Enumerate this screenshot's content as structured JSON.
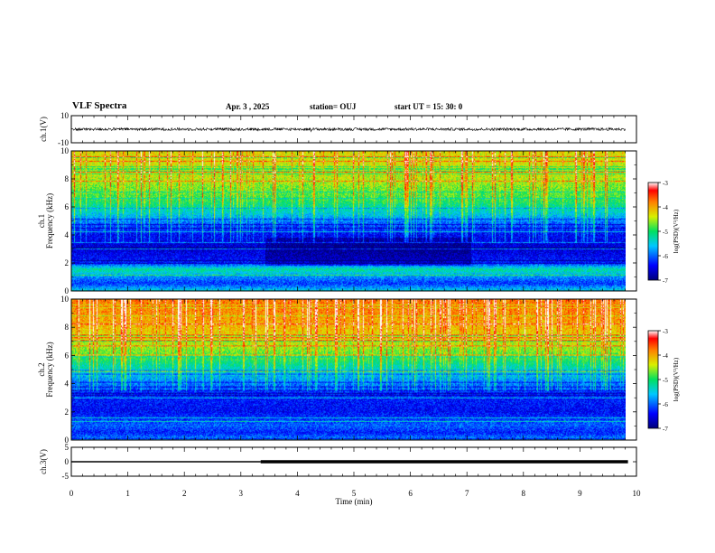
{
  "header": {
    "title": "VLF Spectra",
    "date": "Apr. 3 , 2025",
    "station": "station= OUJ",
    "start_ut": "start  UT =   15: 30: 0"
  },
  "chart_data": [
    {
      "type": "line",
      "panel": "ch1-waveform",
      "ylabel": "ch.1(V)",
      "ylim": [
        -10,
        10
      ],
      "yticks": [
        "10",
        "-10"
      ],
      "xlim": [
        0,
        10
      ],
      "series": [
        {
          "baseline": 0,
          "noise_amplitude": 1.0,
          "xmax": 9.85
        }
      ]
    },
    {
      "type": "heatmap",
      "panel": "ch1-spectrogram",
      "ylabel": "ch.1 Frequency (kHz)",
      "ylim": [
        0,
        10
      ],
      "yticks": [
        "0",
        "2",
        "4",
        "6",
        "8",
        "10"
      ],
      "xlim": [
        0,
        9.85
      ],
      "colorbar": {
        "label": "log(PSD)(V²/Hz)",
        "range": [
          -7,
          -3
        ],
        "ticks": [
          "-3",
          "-4",
          "-5",
          "-6",
          "-7"
        ]
      },
      "intensity_profile": {
        "freq_khz": [
          0,
          0.5,
          1,
          1.5,
          2,
          3,
          4,
          4.8,
          5.5,
          6.5,
          8,
          10
        ],
        "log_psd": [
          -5.5,
          -6.2,
          -5.8,
          -5.2,
          -6.3,
          -6.6,
          -6.5,
          -6.1,
          -5.6,
          -5.0,
          -4.6,
          -4.4
        ]
      }
    },
    {
      "type": "heatmap",
      "panel": "ch2-spectrogram",
      "ylabel": "ch.2 Frequency (kHz)",
      "ylim": [
        0,
        10
      ],
      "yticks": [
        "0",
        "2",
        "4",
        "6",
        "8",
        "10"
      ],
      "xlim": [
        0,
        9.85
      ],
      "colorbar": {
        "label": "log(PSD)(V²/Hz)",
        "range": [
          -7,
          -3
        ],
        "ticks": [
          "-3",
          "-4",
          "-5",
          "-6",
          "-7"
        ]
      },
      "intensity_profile": {
        "freq_khz": [
          0,
          0.5,
          1,
          2,
          3,
          4,
          5,
          6,
          7,
          8,
          9,
          10
        ],
        "log_psd": [
          -5.8,
          -6.3,
          -6.0,
          -6.4,
          -6.3,
          -6.0,
          -5.5,
          -4.9,
          -4.5,
          -4.2,
          -4.0,
          -3.9
        ]
      }
    },
    {
      "type": "line",
      "panel": "ch3-waveform",
      "ylabel": "ch.3(V)",
      "ylim": [
        -5,
        5
      ],
      "yticks": [
        "5",
        "0",
        "-5"
      ],
      "xlim": [
        0,
        10
      ],
      "xlabel": "Time (min)",
      "xticks": [
        "0",
        "1",
        "2",
        "3",
        "4",
        "5",
        "6",
        "7",
        "8",
        "9",
        "10"
      ],
      "series": [
        {
          "segments": [
            {
              "x": [
                0,
                3.35
              ],
              "y": 0
            },
            {
              "x": [
                3.35,
                9.85
              ],
              "y": 0,
              "thick": true
            }
          ]
        }
      ]
    }
  ],
  "colors": {
    "axis": "#000000",
    "background": "#ffffff",
    "trace": "#000000"
  }
}
